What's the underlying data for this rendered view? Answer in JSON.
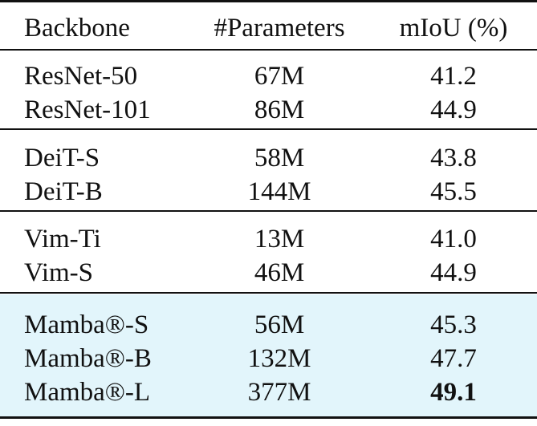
{
  "table": {
    "header": [
      "Backbone",
      "#Parameters",
      "mIoU (%)"
    ],
    "groups": [
      {
        "rows": [
          [
            "ResNet-50",
            "67M",
            "41.2"
          ],
          [
            "ResNet-101",
            "86M",
            "44.9"
          ]
        ]
      },
      {
        "rows": [
          [
            "DeiT-S",
            "58M",
            "43.8"
          ],
          [
            "DeiT-B",
            "144M",
            "45.5"
          ]
        ]
      },
      {
        "rows": [
          [
            "Vim-Ti",
            "13M",
            "41.0"
          ],
          [
            "Vim-S",
            "46M",
            "44.9"
          ]
        ]
      },
      {
        "rows": [
          [
            "Mamba®-S",
            "56M",
            "45.3"
          ],
          [
            "Mamba®-B",
            "132M",
            "47.7"
          ],
          [
            "Mamba®-L",
            "377M",
            "49.1"
          ]
        ]
      }
    ]
  }
}
